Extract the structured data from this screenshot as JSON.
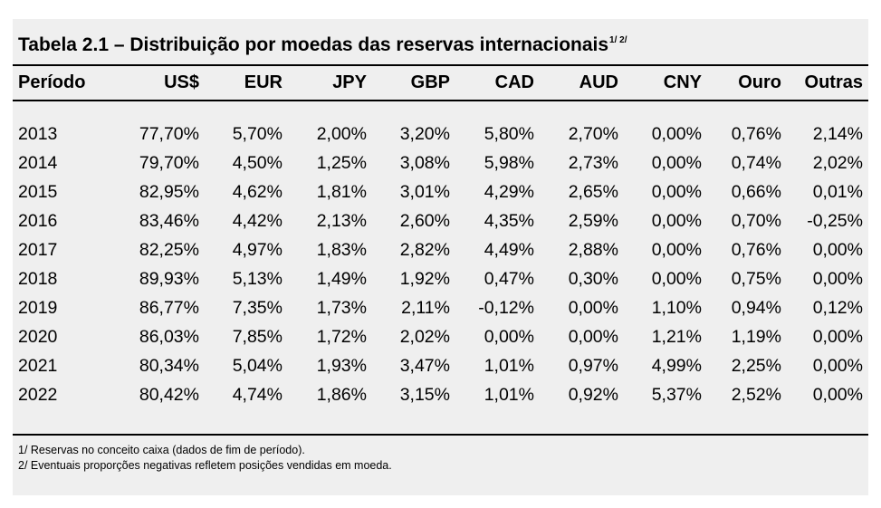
{
  "table": {
    "title": "Tabela 2.1 – Distribuição por moedas das reservas internacionais",
    "title_sup": "1/ 2/",
    "headers": [
      "Período",
      "US$",
      "EUR",
      "JPY",
      "GBP",
      "CAD",
      "AUD",
      "CNY",
      "Ouro",
      "Outras"
    ],
    "rows": [
      [
        "2013",
        "77,70%",
        "5,70%",
        "2,00%",
        "3,20%",
        "5,80%",
        "2,70%",
        "0,00%",
        "0,76%",
        "2,14%"
      ],
      [
        "2014",
        "79,70%",
        "4,50%",
        "1,25%",
        "3,08%",
        "5,98%",
        "2,73%",
        "0,00%",
        "0,74%",
        "2,02%"
      ],
      [
        "2015",
        "82,95%",
        "4,62%",
        "1,81%",
        "3,01%",
        "4,29%",
        "2,65%",
        "0,00%",
        "0,66%",
        "0,01%"
      ],
      [
        "2016",
        "83,46%",
        "4,42%",
        "2,13%",
        "2,60%",
        "4,35%",
        "2,59%",
        "0,00%",
        "0,70%",
        "-0,25%"
      ],
      [
        "2017",
        "82,25%",
        "4,97%",
        "1,83%",
        "2,82%",
        "4,49%",
        "2,88%",
        "0,00%",
        "0,76%",
        "0,00%"
      ],
      [
        "2018",
        "89,93%",
        "5,13%",
        "1,49%",
        "1,92%",
        "0,47%",
        "0,30%",
        "0,00%",
        "0,75%",
        "0,00%"
      ],
      [
        "2019",
        "86,77%",
        "7,35%",
        "1,73%",
        "2,11%",
        "-0,12%",
        "0,00%",
        "1,10%",
        "0,94%",
        "0,12%"
      ],
      [
        "2020",
        "86,03%",
        "7,85%",
        "1,72%",
        "2,02%",
        "0,00%",
        "0,00%",
        "1,21%",
        "1,19%",
        "0,00%"
      ],
      [
        "2021",
        "80,34%",
        "5,04%",
        "1,93%",
        "3,47%",
        "1,01%",
        "0,97%",
        "4,99%",
        "2,25%",
        "0,00%"
      ],
      [
        "2022",
        "80,42%",
        "4,74%",
        "1,86%",
        "3,15%",
        "1,01%",
        "0,92%",
        "5,37%",
        "2,52%",
        "0,00%"
      ]
    ],
    "notes": [
      "1/ Reservas no conceito caixa (dados de fim de período).",
      "2/ Eventuais proporções negativas refletem posições vendidas em moeda."
    ]
  },
  "colors": {
    "panel_background": "#efefef",
    "rule": "#000000",
    "text": "#000000"
  }
}
